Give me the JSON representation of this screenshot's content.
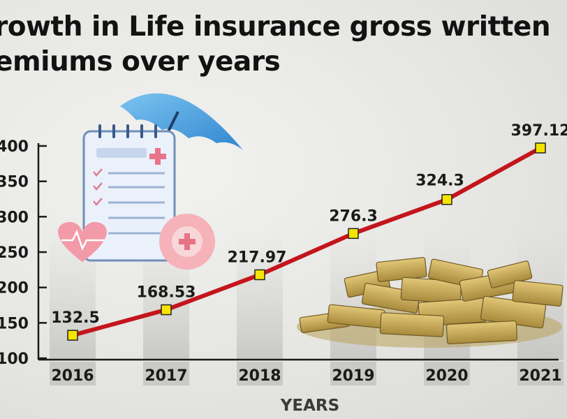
{
  "title_lines": [
    "rowth in Life insurance gross written",
    "emiums over years"
  ],
  "chart_data": {
    "type": "line",
    "title": "rowth in Life insurance gross written emiums over years",
    "xlabel": "YEARS",
    "ylabel": "",
    "categories": [
      "2016",
      "2017",
      "2018",
      "2019",
      "2020",
      "2021"
    ],
    "series": [
      {
        "values": [
          132.5,
          168.53,
          217.97,
          276.3,
          324.3,
          397.12
        ]
      }
    ],
    "data_labels": [
      "132.5",
      "168.53",
      "217.97",
      "276.3",
      "324.3",
      "397.12"
    ],
    "yticks": [
      100,
      150,
      200,
      250,
      300,
      350,
      400
    ],
    "ytick_labels": [
      "100",
      "150",
      "200",
      "250",
      "300",
      "350",
      "400"
    ],
    "ylim": [
      100,
      400
    ],
    "grid": false,
    "colors": {
      "line": "#c4151c",
      "marker": "#f5e400",
      "marker_stroke": "#222222",
      "axis": "#1a1a1a"
    }
  }
}
